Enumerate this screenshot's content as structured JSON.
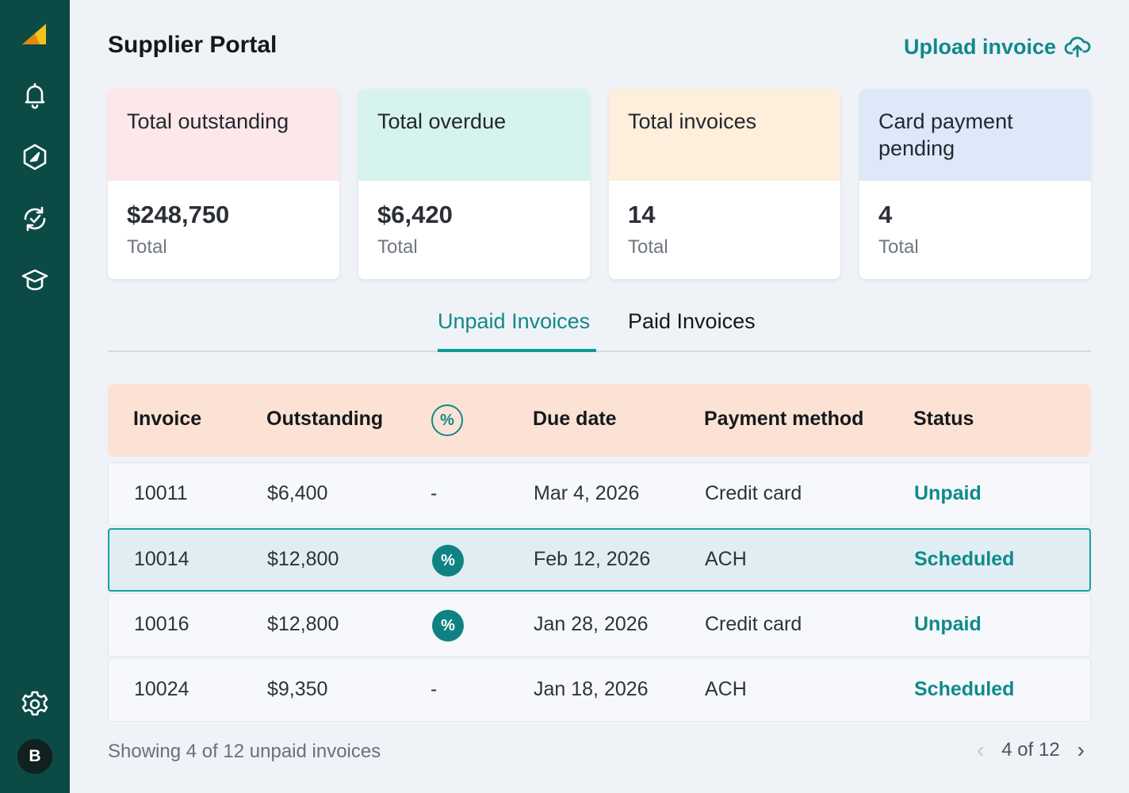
{
  "app": {
    "title": "Supplier Portal",
    "upload_label": "Upload invoice"
  },
  "sidebar": {
    "items": [
      {
        "icon": "bell-icon"
      },
      {
        "icon": "compass-icon"
      },
      {
        "icon": "sync-check-icon"
      },
      {
        "icon": "graduation-cap-icon"
      }
    ],
    "settings_icon": "gear-icon",
    "avatar_initial": "B"
  },
  "cards": [
    {
      "title": "Total outstanding",
      "value": "$248,750",
      "sub": "Total",
      "color": "#fce7e9"
    },
    {
      "title": "Total overdue",
      "value": "$6,420",
      "sub": "Total",
      "color": "#d7f3ee"
    },
    {
      "title": "Total invoices",
      "value": "14",
      "sub": "Total",
      "color": "#feeedc"
    },
    {
      "title": "Card payment pending",
      "value": "4",
      "sub": "Total",
      "color": "#dde8f8"
    }
  ],
  "tabs": {
    "active": "Unpaid Invoices",
    "inactive": "Paid Invoices"
  },
  "table": {
    "headers": {
      "invoice": "Invoice",
      "outstanding": "Outstanding",
      "discount_icon": "%",
      "due_date": "Due date",
      "payment_method": "Payment method",
      "status": "Status"
    },
    "rows": [
      {
        "invoice": "10011",
        "outstanding": "$6,400",
        "discount": "-",
        "due_date": "Mar 4, 2026",
        "payment_method": "Credit card",
        "status": "Unpaid"
      },
      {
        "invoice": "10014",
        "outstanding": "$12,800",
        "discount": "%",
        "due_date": "Feb 12, 2026",
        "payment_method": "ACH",
        "status": "Scheduled"
      },
      {
        "invoice": "10016",
        "outstanding": "$12,800",
        "discount": "%",
        "due_date": "Jan 28, 2026",
        "payment_method": "Credit card",
        "status": "Unpaid"
      },
      {
        "invoice": "10024",
        "outstanding": "$9,350",
        "discount": "-",
        "due_date": "Jan 18, 2026",
        "payment_method": "ACH",
        "status": "Scheduled"
      }
    ]
  },
  "footer": {
    "showing_text": "Showing 4 of 12 unpaid invoices",
    "page_label": "4 of 12",
    "prev_arrow": "‹",
    "next_arrow": "›"
  },
  "colors": {
    "sidebar": "#0b4a45",
    "accent": "#0f8a8a",
    "table_header": "#fbe2d4",
    "selected_row": "#e0edf3"
  }
}
